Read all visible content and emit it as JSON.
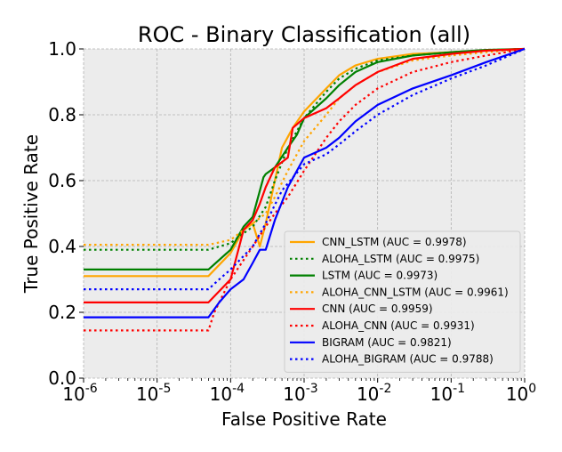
{
  "chart_data": {
    "type": "line",
    "title": "ROC - Binary Classification (all)",
    "xlabel": "False Positive Rate",
    "ylabel": "True Positive Rate",
    "xscale": "log",
    "xlim": [
      1e-06,
      1
    ],
    "ylim": [
      0,
      1
    ],
    "grid": true,
    "legend_position": "lower-right",
    "x_ticks": [
      {
        "value": 1e-06,
        "base": "10",
        "exp": "-6"
      },
      {
        "value": 1e-05,
        "base": "10",
        "exp": "-5"
      },
      {
        "value": 0.0001,
        "base": "10",
        "exp": "-4"
      },
      {
        "value": 0.001,
        "base": "10",
        "exp": "-3"
      },
      {
        "value": 0.01,
        "base": "10",
        "exp": "-2"
      },
      {
        "value": 0.1,
        "base": "10",
        "exp": "-1"
      },
      {
        "value": 1,
        "base": "10",
        "exp": "0"
      }
    ],
    "y_ticks": [
      {
        "value": 0.0,
        "label": "0.0"
      },
      {
        "value": 0.2,
        "label": "0.2"
      },
      {
        "value": 0.4,
        "label": "0.4"
      },
      {
        "value": 0.6,
        "label": "0.6"
      },
      {
        "value": 0.8,
        "label": "0.8"
      },
      {
        "value": 1.0,
        "label": "1.0"
      }
    ],
    "series": [
      {
        "name": "CNN_LSTM (AUC = 0.9978)",
        "color": "#ffa500",
        "dash": "solid",
        "points": [
          [
            1e-06,
            0.31
          ],
          [
            5e-05,
            0.31
          ],
          [
            0.0001,
            0.38
          ],
          [
            0.00015,
            0.45
          ],
          [
            0.0002,
            0.47
          ],
          [
            0.00025,
            0.4
          ],
          [
            0.0003,
            0.47
          ],
          [
            0.0004,
            0.6
          ],
          [
            0.0005,
            0.7
          ],
          [
            0.0007,
            0.76
          ],
          [
            0.001,
            0.81
          ],
          [
            0.002,
            0.88
          ],
          [
            0.003,
            0.92
          ],
          [
            0.005,
            0.95
          ],
          [
            0.01,
            0.97
          ],
          [
            0.03,
            0.985
          ],
          [
            0.1,
            0.99
          ],
          [
            0.3,
            0.996
          ],
          [
            1,
            1
          ]
        ]
      },
      {
        "name": "ALOHA_LSTM (AUC = 0.9975)",
        "color": "#008000",
        "dash": "dotted",
        "points": [
          [
            1e-06,
            0.39
          ],
          [
            5e-05,
            0.39
          ],
          [
            0.0001,
            0.41
          ],
          [
            0.00015,
            0.44
          ],
          [
            0.0002,
            0.46
          ],
          [
            0.0003,
            0.52
          ],
          [
            0.0004,
            0.6
          ],
          [
            0.0006,
            0.7
          ],
          [
            0.001,
            0.79
          ],
          [
            0.002,
            0.87
          ],
          [
            0.003,
            0.91
          ],
          [
            0.005,
            0.94
          ],
          [
            0.01,
            0.965
          ],
          [
            0.03,
            0.98
          ],
          [
            0.1,
            0.99
          ],
          [
            0.3,
            0.996
          ],
          [
            1,
            1
          ]
        ]
      },
      {
        "name": "LSTM (AUC = 0.9973)",
        "color": "#008000",
        "dash": "solid",
        "points": [
          [
            1e-06,
            0.33
          ],
          [
            5e-05,
            0.33
          ],
          [
            0.0001,
            0.39
          ],
          [
            0.00015,
            0.46
          ],
          [
            0.0002,
            0.49
          ],
          [
            0.00028,
            0.61
          ],
          [
            0.0003,
            0.62
          ],
          [
            0.0004,
            0.64
          ],
          [
            0.0006,
            0.7
          ],
          [
            0.0008,
            0.74
          ],
          [
            0.001,
            0.79
          ],
          [
            0.002,
            0.85
          ],
          [
            0.003,
            0.89
          ],
          [
            0.005,
            0.93
          ],
          [
            0.01,
            0.96
          ],
          [
            0.03,
            0.98
          ],
          [
            0.1,
            0.99
          ],
          [
            0.3,
            0.997
          ],
          [
            1,
            1
          ]
        ]
      },
      {
        "name": "ALOHA_CNN_LSTM (AUC = 0.9961)",
        "color": "#ffa500",
        "dash": "dotted",
        "points": [
          [
            1e-06,
            0.405
          ],
          [
            5e-05,
            0.405
          ],
          [
            0.0001,
            0.42
          ],
          [
            0.00015,
            0.45
          ],
          [
            0.0002,
            0.47
          ],
          [
            0.0003,
            0.5
          ],
          [
            0.0004,
            0.55
          ],
          [
            0.0006,
            0.63
          ],
          [
            0.001,
            0.72
          ],
          [
            0.002,
            0.8
          ],
          [
            0.003,
            0.85
          ],
          [
            0.005,
            0.89
          ],
          [
            0.01,
            0.93
          ],
          [
            0.03,
            0.965
          ],
          [
            0.1,
            0.98
          ],
          [
            0.3,
            0.99
          ],
          [
            1,
            1
          ]
        ]
      },
      {
        "name": "CNN (AUC = 0.9959)",
        "color": "#ff0000",
        "dash": "solid",
        "points": [
          [
            1e-06,
            0.23
          ],
          [
            5e-05,
            0.23
          ],
          [
            0.0001,
            0.3
          ],
          [
            0.00015,
            0.45
          ],
          [
            0.0002,
            0.48
          ],
          [
            0.00025,
            0.53
          ],
          [
            0.0003,
            0.58
          ],
          [
            0.0004,
            0.64
          ],
          [
            0.0006,
            0.67
          ],
          [
            0.0007,
            0.76
          ],
          [
            0.001,
            0.79
          ],
          [
            0.002,
            0.82
          ],
          [
            0.003,
            0.85
          ],
          [
            0.005,
            0.89
          ],
          [
            0.01,
            0.93
          ],
          [
            0.03,
            0.97
          ],
          [
            0.1,
            0.985
          ],
          [
            0.3,
            0.995
          ],
          [
            1,
            1
          ]
        ]
      },
      {
        "name": "ALOHA_CNN (AUC = 0.9931)",
        "color": "#ff0000",
        "dash": "dotted",
        "points": [
          [
            1e-06,
            0.145
          ],
          [
            5e-05,
            0.145
          ],
          [
            6e-05,
            0.2
          ],
          [
            0.0001,
            0.3
          ],
          [
            0.0002,
            0.4
          ],
          [
            0.0003,
            0.46
          ],
          [
            0.0004,
            0.5
          ],
          [
            0.0006,
            0.55
          ],
          [
            0.001,
            0.63
          ],
          [
            0.002,
            0.73
          ],
          [
            0.003,
            0.78
          ],
          [
            0.005,
            0.83
          ],
          [
            0.01,
            0.88
          ],
          [
            0.03,
            0.93
          ],
          [
            0.1,
            0.96
          ],
          [
            0.3,
            0.98
          ],
          [
            1,
            1
          ]
        ]
      },
      {
        "name": "BIGRAM (AUC = 0.9821)",
        "color": "#0000ff",
        "dash": "solid",
        "points": [
          [
            1e-06,
            0.185
          ],
          [
            5e-05,
            0.185
          ],
          [
            7e-05,
            0.23
          ],
          [
            0.0001,
            0.27
          ],
          [
            0.00015,
            0.3
          ],
          [
            0.0002,
            0.35
          ],
          [
            0.00025,
            0.39
          ],
          [
            0.0003,
            0.39
          ],
          [
            0.0004,
            0.48
          ],
          [
            0.0006,
            0.58
          ],
          [
            0.001,
            0.67
          ],
          [
            0.002,
            0.7
          ],
          [
            0.003,
            0.73
          ],
          [
            0.005,
            0.78
          ],
          [
            0.01,
            0.83
          ],
          [
            0.03,
            0.88
          ],
          [
            0.1,
            0.92
          ],
          [
            0.3,
            0.96
          ],
          [
            1,
            1
          ]
        ]
      },
      {
        "name": "ALOHA_BIGRAM (AUC = 0.9788)",
        "color": "#0000ff",
        "dash": "dotted",
        "points": [
          [
            1e-06,
            0.27
          ],
          [
            5e-05,
            0.27
          ],
          [
            7e-05,
            0.3
          ],
          [
            0.0001,
            0.33
          ],
          [
            0.0002,
            0.4
          ],
          [
            0.0003,
            0.47
          ],
          [
            0.0005,
            0.57
          ],
          [
            0.001,
            0.65
          ],
          [
            0.002,
            0.68
          ],
          [
            0.003,
            0.71
          ],
          [
            0.005,
            0.75
          ],
          [
            0.01,
            0.8
          ],
          [
            0.03,
            0.86
          ],
          [
            0.1,
            0.91
          ],
          [
            0.3,
            0.95
          ],
          [
            1,
            1
          ]
        ]
      }
    ]
  }
}
